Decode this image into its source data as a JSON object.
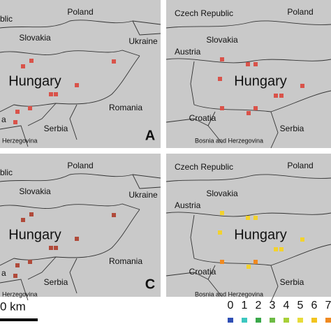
{
  "panels": [
    {
      "letter": "A",
      "labels": [
        "blic",
        "Poland",
        "Slovakia",
        "Ukraine",
        "Hungary",
        "Romania",
        "Serbia",
        "a",
        "Herzegovina"
      ]
    },
    {
      "labels": [
        "Czech Republic",
        "Poland",
        "Slovakia",
        "Austria",
        "Hungary",
        "Croatia",
        "Serbia",
        "Bosnia and Herzegovina"
      ]
    },
    {
      "letter": "C",
      "labels": [
        "blic",
        "Poland",
        "Slovakia",
        "Ukraine",
        "Hungary",
        "Romania",
        "Serbia",
        "a",
        "Herzegovina"
      ]
    },
    {
      "labels": [
        "Czech Republic",
        "Poland",
        "Slovakia",
        "Austria",
        "Hungary",
        "Croatia",
        "Serbia",
        "Bosnia and Herzegovina"
      ]
    }
  ],
  "scale_bar": {
    "label": "0 km"
  },
  "legend": {
    "items": [
      {
        "label": "0",
        "color": "#2f4fb5"
      },
      {
        "label": "1",
        "color": "#3cc7c0"
      },
      {
        "label": "2",
        "color": "#3aa84a"
      },
      {
        "label": "3",
        "color": "#6dbb45"
      },
      {
        "label": "4",
        "color": "#a8d038"
      },
      {
        "label": "5",
        "color": "#e8dc3a"
      },
      {
        "label": "6",
        "color": "#f2c41e"
      },
      {
        "label": "7",
        "color": "#f08a20"
      }
    ]
  }
}
